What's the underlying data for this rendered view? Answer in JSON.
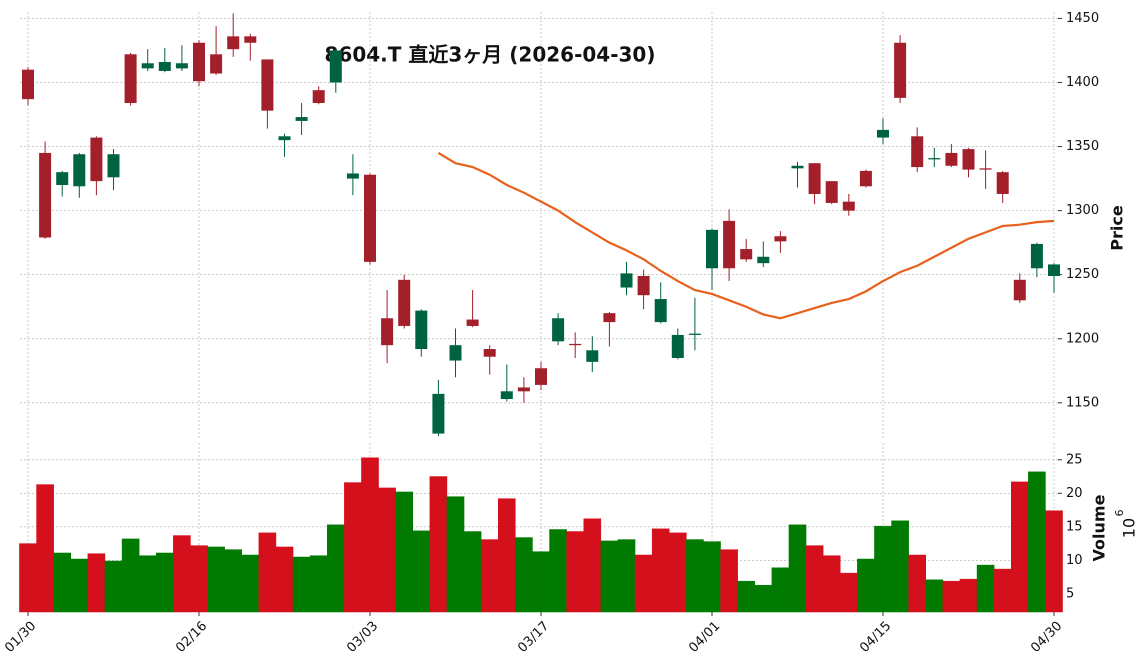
{
  "chart_data": {
    "type": "candlestick",
    "title": "8604.T 直近3ヶ月 (2026-04-30)",
    "categories": [
      "01/30",
      null,
      null,
      null,
      null,
      null,
      null,
      null,
      null,
      null,
      "02/16",
      null,
      null,
      null,
      null,
      null,
      null,
      null,
      null,
      null,
      "03/03",
      null,
      null,
      null,
      null,
      null,
      null,
      null,
      null,
      null,
      "03/17",
      null,
      null,
      null,
      null,
      null,
      null,
      null,
      null,
      null,
      "04/01",
      null,
      null,
      null,
      null,
      null,
      null,
      null,
      null,
      null,
      "04/15",
      null,
      null,
      null,
      null,
      null,
      null,
      null,
      null,
      null,
      "04/30"
    ],
    "grid": true,
    "price": {
      "ylabel": "Price",
      "ylim": [
        1121,
        1455
      ],
      "yticks": [
        1150,
        1200,
        1250,
        1300,
        1350,
        1400,
        1450
      ],
      "up_color": "#006340",
      "down_color": "#a3202b",
      "open": [
        1410,
        1345,
        1320,
        1319,
        1357,
        1326,
        1422,
        1411,
        1409,
        1411,
        1431,
        1422,
        1436,
        1436,
        1418,
        1355,
        1370,
        1394,
        1400,
        1325,
        1328,
        1216,
        1246,
        1192,
        1126,
        1183,
        1215,
        1192,
        1153,
        1162,
        1177,
        1198,
        1196,
        1182,
        1220,
        1240,
        1249,
        1213,
        1185,
        1203,
        1255,
        1292,
        1270,
        1259,
        1280,
        1333,
        1337,
        1323,
        1307,
        1331,
        1357,
        1431,
        1358,
        1340,
        1345,
        1348,
        1333,
        1330,
        1246,
        1255,
        1249
      ],
      "high": [
        1412,
        1354,
        1331,
        1345,
        1358,
        1348,
        1423,
        1426,
        1427,
        1429,
        1433,
        1444,
        1454,
        1438,
        1418,
        1360,
        1384,
        1397,
        1426,
        1344,
        1329,
        1238,
        1250,
        1223,
        1168,
        1208,
        1238,
        1195,
        1180,
        1170,
        1182,
        1220,
        1205,
        1202,
        1221,
        1260,
        1254,
        1244,
        1208,
        1232,
        1286,
        1301,
        1278,
        1276,
        1284,
        1338,
        1337,
        1323,
        1313,
        1332,
        1372,
        1437,
        1365,
        1349,
        1352,
        1349,
        1347,
        1331,
        1251,
        1275,
        1259
      ],
      "low": [
        1382,
        1278,
        1311,
        1310,
        1312,
        1316,
        1382,
        1409,
        1408,
        1409,
        1397,
        1406,
        1420,
        1417,
        1364,
        1342,
        1359,
        1383,
        1392,
        1312,
        1258,
        1181,
        1208,
        1186,
        1124,
        1170,
        1209,
        1172,
        1151,
        1150,
        1160,
        1195,
        1185,
        1174,
        1194,
        1234,
        1223,
        1212,
        1184,
        1191,
        1238,
        1245,
        1260,
        1256,
        1267,
        1318,
        1305,
        1305,
        1296,
        1318,
        1352,
        1384,
        1330,
        1334,
        1334,
        1326,
        1317,
        1306,
        1228,
        1248,
        1236
      ],
      "close": [
        1387,
        1279,
        1330,
        1344,
        1323,
        1344,
        1384,
        1415,
        1416,
        1415,
        1401,
        1407,
        1426,
        1431,
        1378,
        1358,
        1373,
        1384,
        1425,
        1329,
        1260,
        1195,
        1210,
        1222,
        1157,
        1195,
        1210,
        1186,
        1159,
        1159,
        1164,
        1216,
        1195,
        1191,
        1213,
        1251,
        1234,
        1231,
        1203,
        1204,
        1285,
        1255,
        1262,
        1264,
        1276,
        1335,
        1313,
        1306,
        1300,
        1319,
        1363,
        1388,
        1334,
        1341,
        1335,
        1332,
        1332,
        1313,
        1230,
        1274,
        1258
      ],
      "ma_color": "#e8601c",
      "ma": [
        null,
        null,
        null,
        null,
        null,
        null,
        null,
        null,
        null,
        null,
        null,
        null,
        null,
        null,
        null,
        null,
        null,
        null,
        null,
        null,
        null,
        null,
        null,
        null,
        1345,
        1337,
        1334,
        1328,
        1320,
        1314,
        1307,
        1300,
        1291,
        1283,
        1275,
        1269,
        1262,
        1253,
        1245,
        1238,
        1235,
        1230,
        1225,
        1219,
        1216,
        1220,
        1224,
        1228,
        1231,
        1237,
        1245,
        1252,
        1257,
        1264,
        1271,
        1278,
        1283,
        1288,
        1289,
        1291,
        1292
      ]
    },
    "volume": {
      "ylabel": "Volume",
      "unit_base": "10",
      "unit_exponent": "6",
      "ylim": [
        2.3,
        27.5
      ],
      "yticks": [
        5,
        10,
        15,
        20,
        25
      ],
      "up_color": "#007a00",
      "down_color": "#d4101c",
      "values": [
        12.5,
        21.3,
        11.1,
        10.2,
        11.0,
        9.9,
        13.2,
        10.7,
        11.1,
        13.7,
        12.2,
        12.0,
        11.6,
        10.8,
        14.1,
        12.0,
        10.5,
        10.7,
        15.3,
        21.6,
        25.3,
        20.8,
        20.2,
        14.4,
        22.5,
        19.5,
        14.3,
        13.1,
        19.2,
        13.4,
        11.3,
        14.6,
        14.3,
        16.2,
        12.9,
        13.1,
        10.8,
        14.7,
        14.1,
        13.1,
        12.8,
        11.6,
        6.9,
        6.3,
        8.9,
        15.3,
        12.2,
        10.7,
        8.1,
        10.2,
        15.1,
        15.9,
        10.8,
        7.1,
        6.9,
        7.2,
        9.3,
        8.7,
        21.7,
        23.2,
        17.4
      ]
    }
  }
}
